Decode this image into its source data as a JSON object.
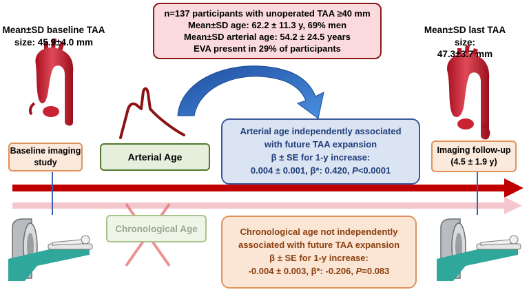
{
  "top_box": {
    "line1": "n=137 participants with unoperated TAA ≥40 mm",
    "line2": "Mean±SD age: 62.2 ± 11.3 y, 69% men",
    "line3": "Mean±SD arterial age: 54.2 ± 24.5 years",
    "line4": "EVA present in 29% of participants"
  },
  "baseline_size": {
    "line1": "Mean±SD baseline TAA",
    "line2": "size: 45.9±4.0 mm"
  },
  "last_size": {
    "line1": "Mean±SD last TAA size:",
    "line2": "47.3±3.7 mm"
  },
  "baseline_study": {
    "line1": "Baseline imaging",
    "line2": "study"
  },
  "arterial_age": {
    "label": "Arterial Age"
  },
  "arterial_result": {
    "line1": "Arterial age independently associated",
    "line2": "with future TAA expansion",
    "line3": "β ± SE for 1-y increase:",
    "line4_prefix": "0.004 ± 0.001, β*: 0.420, ",
    "p_label": "P",
    "line4_suffix": "<0.0001"
  },
  "followup": {
    "line1": "Imaging follow-up",
    "line2": "(4.5 ± 1.9 y)"
  },
  "chrono_age": {
    "label": "Chronological Age"
  },
  "chrono_result": {
    "line1": "Chronological age not  independently",
    "line2": "associated with future TAA expansion",
    "line3": "β ± SE for 1-y increase:",
    "line4_prefix": "-0.004 ± 0.003, β*: -0.206, ",
    "p_label": "P",
    "line4_suffix": "=0.083"
  },
  "icons": [
    "aorta-icon",
    "pulse-waveform-icon",
    "curved-arrow-icon",
    "timeline-arrow-icon",
    "cross-icon",
    "ct-scanner-icon"
  ],
  "colors": {
    "dark_red_arrow": "#c00000",
    "light_pink_arrow": "#f4c7cc",
    "curved_arrow_blue": "#2e6fc7",
    "aorta_red": "#cf2b3a",
    "cross_red": "#e8807f",
    "scanner_teal": "#2fa79a"
  }
}
